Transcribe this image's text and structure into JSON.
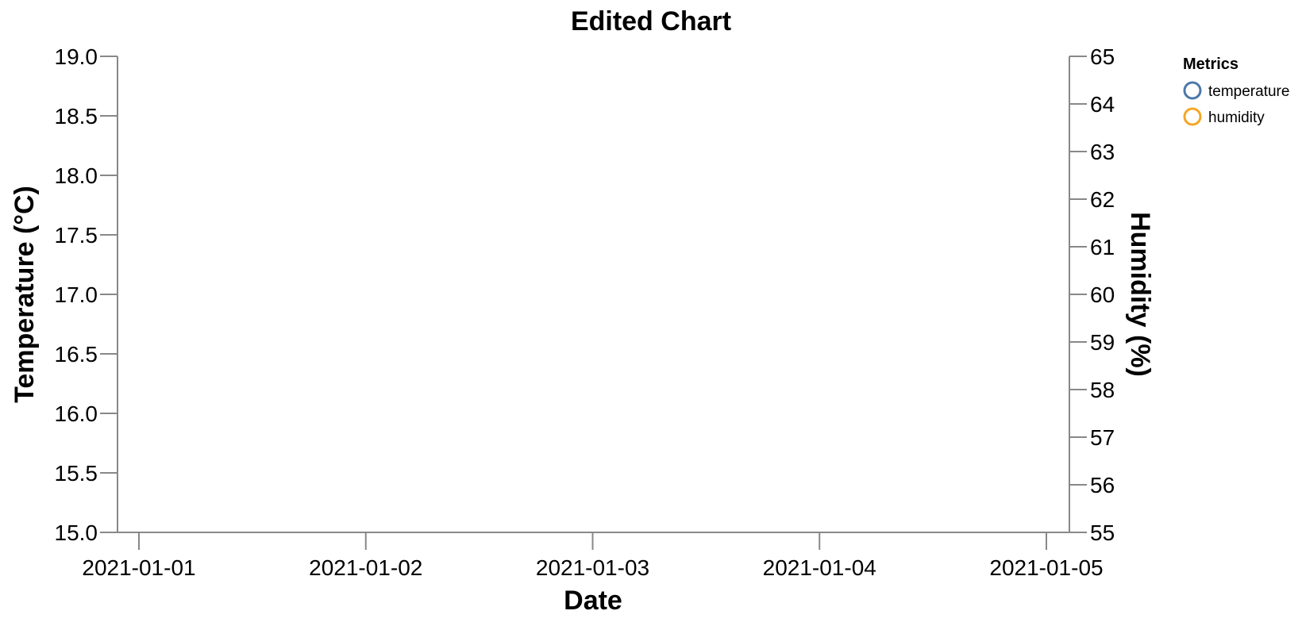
{
  "chart_data": {
    "type": "line",
    "title": "Edited Chart",
    "xlabel": "Date",
    "ylabel": "Temperature (°C)",
    "y2label": "Humidity (%)",
    "x_ticks": [
      "2021-01-01",
      "2021-01-02",
      "2021-01-03",
      "2021-01-04",
      "2021-01-05"
    ],
    "ylim": [
      15.0,
      19.0
    ],
    "y_ticks": [
      "15.0",
      "15.5",
      "16.0",
      "16.5",
      "17.0",
      "17.5",
      "18.0",
      "18.5",
      "19.0"
    ],
    "y2lim": [
      55,
      65
    ],
    "y2_ticks": [
      "55",
      "56",
      "57",
      "58",
      "59",
      "60",
      "61",
      "62",
      "63",
      "64",
      "65"
    ],
    "grid": false,
    "legend": {
      "title": "Metrics",
      "placement": "top-right",
      "entries": [
        {
          "label": "temperature",
          "color": "#4c78a8"
        },
        {
          "label": "humidity",
          "color": "#f5a623"
        }
      ]
    },
    "series": []
  }
}
